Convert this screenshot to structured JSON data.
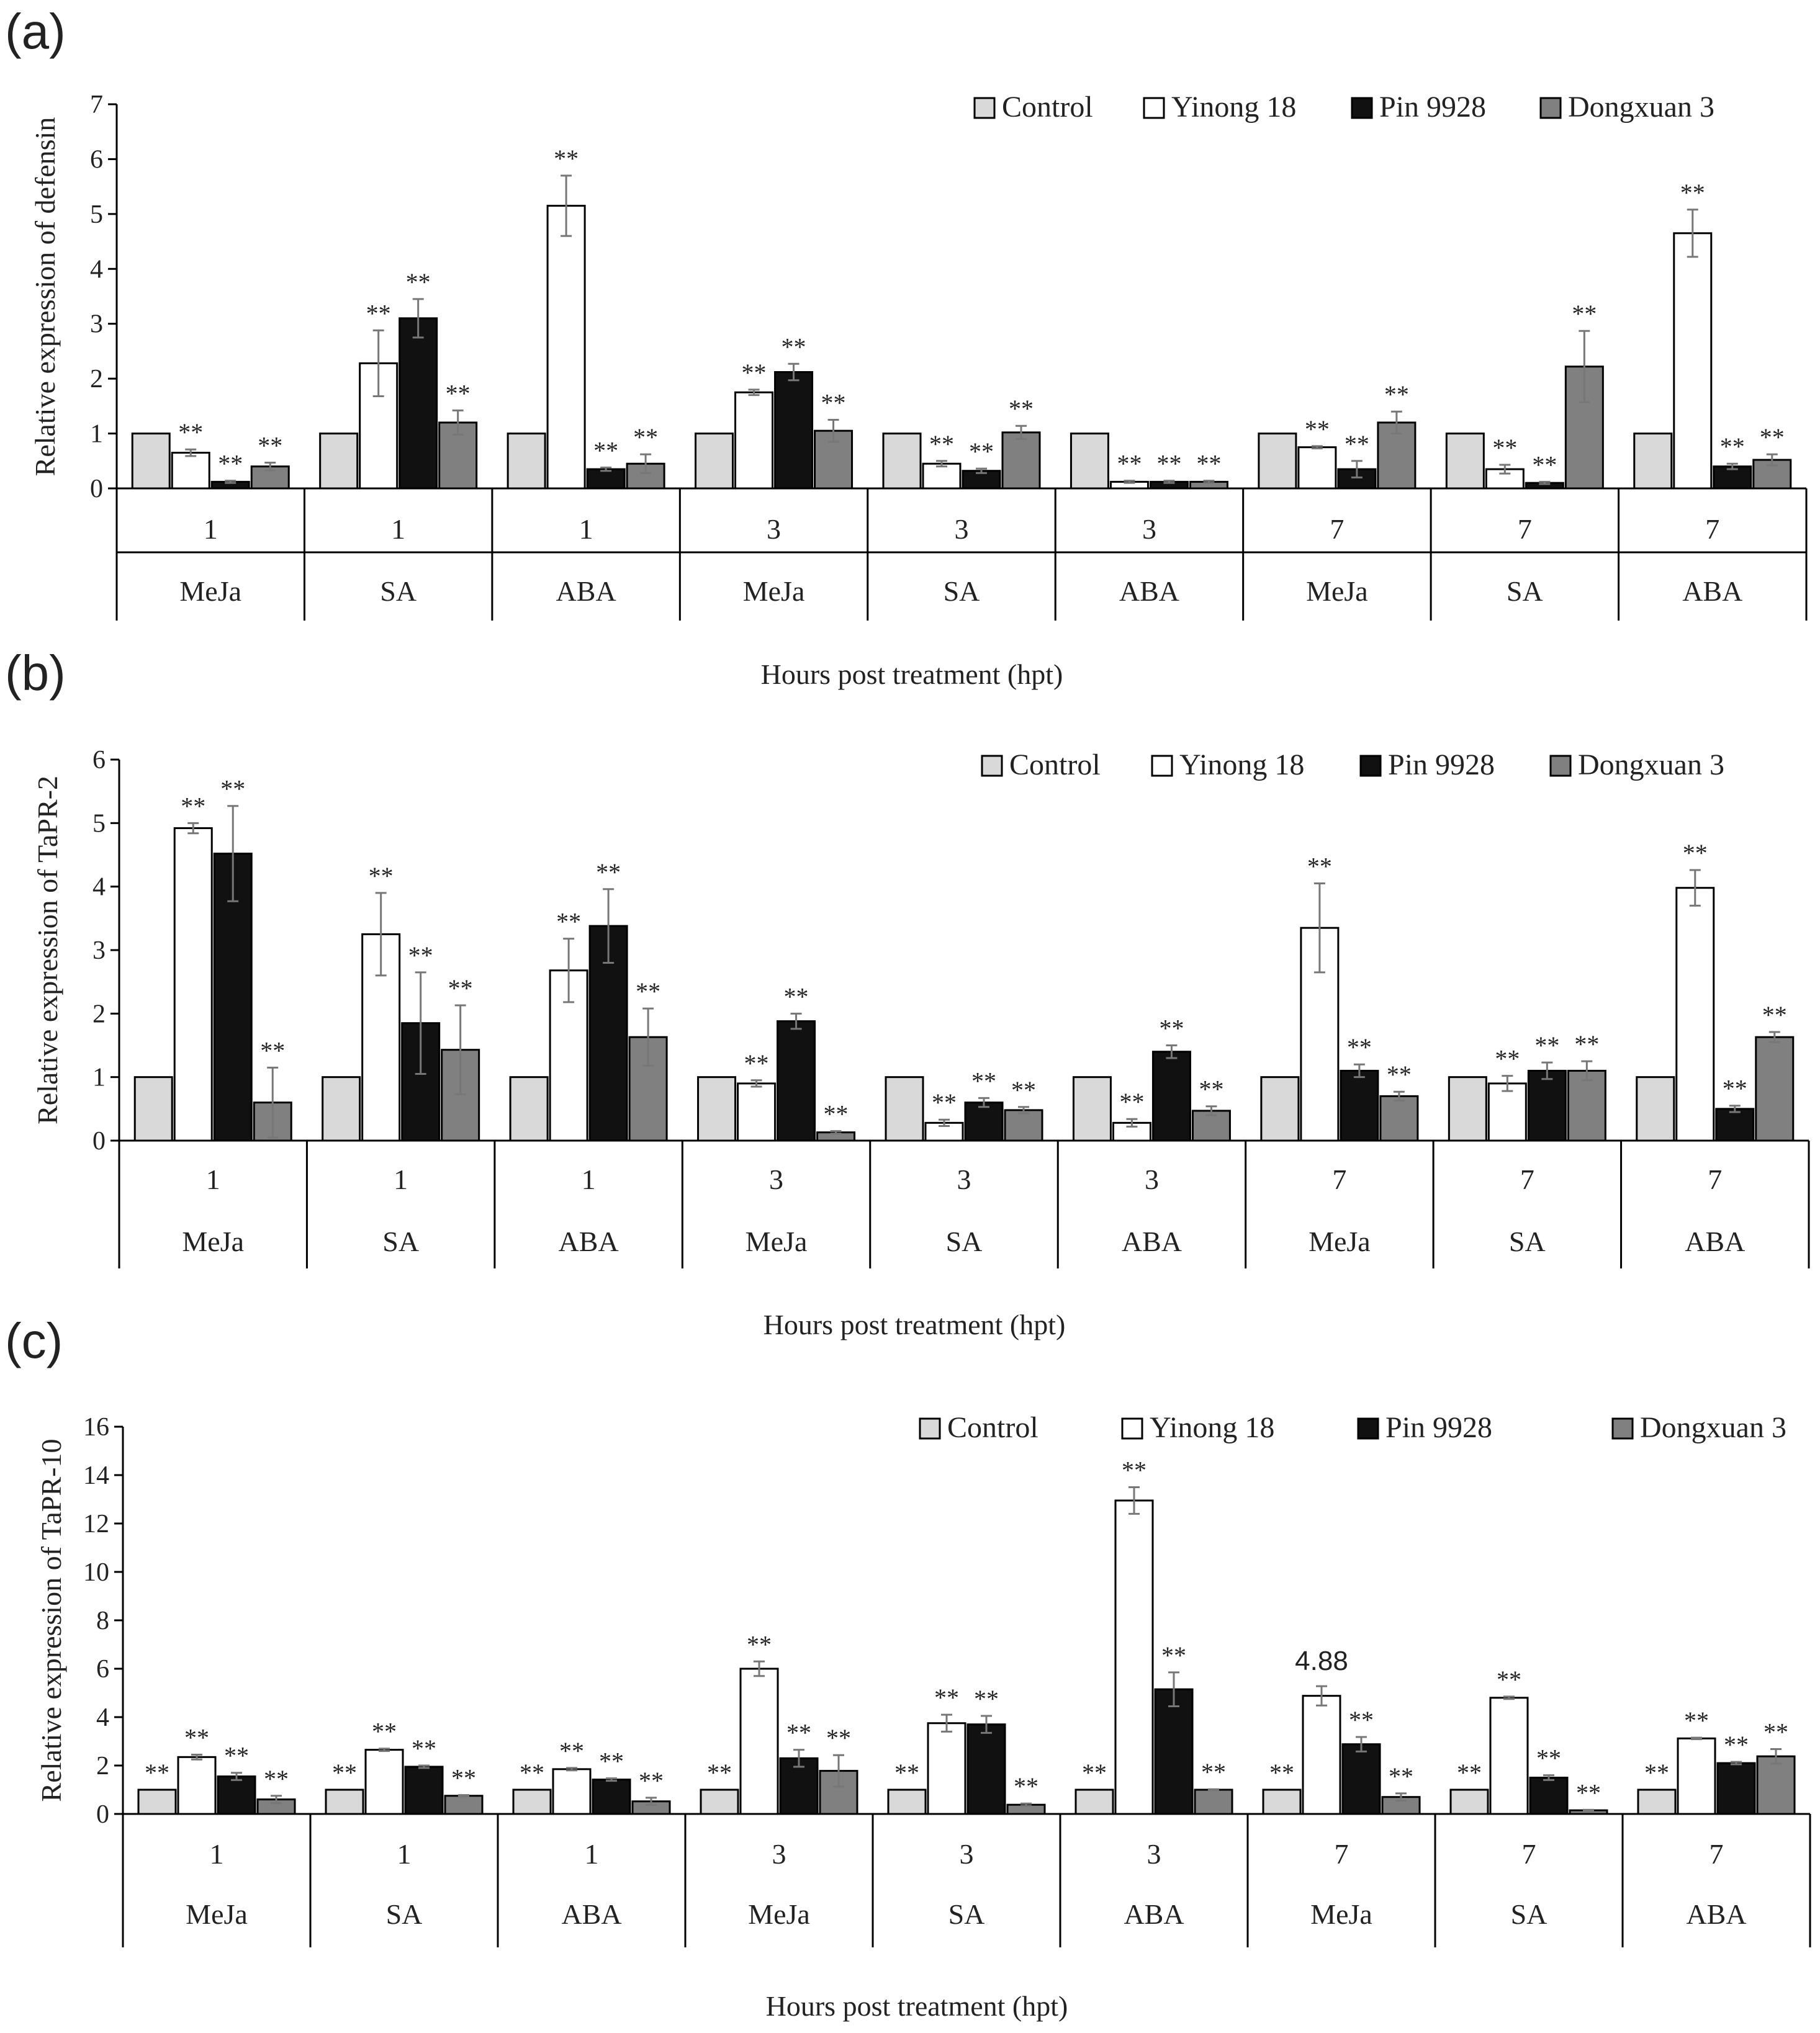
{
  "figure": {
    "colors": {
      "Control": "#d9d9d9",
      "Yinong 18": "#ffffff",
      "Pin 9928": "#111111",
      "Dongxuan 3": "#808080",
      "error_bar": "#777777",
      "axis": "#000000"
    }
  },
  "chart_data": [
    {
      "panel": "(a)",
      "type": "bar",
      "ylabel": "Relative expression of defensin",
      "xlabel": "Hours post treatment (hpt)",
      "ylim": [
        0,
        7
      ],
      "yticks": [
        0,
        1,
        2,
        3,
        4,
        5,
        6,
        7
      ],
      "legend": [
        "Control",
        "Yinong 18",
        "Pin 9928",
        "Dongxuan 3"
      ],
      "legend_position": "top-right",
      "groups": [
        {
          "hpt": "1",
          "treatment": "MeJa"
        },
        {
          "hpt": "1",
          "treatment": "SA"
        },
        {
          "hpt": "1",
          "treatment": "ABA"
        },
        {
          "hpt": "3",
          "treatment": "MeJa"
        },
        {
          "hpt": "3",
          "treatment": "SA"
        },
        {
          "hpt": "3",
          "treatment": "ABA"
        },
        {
          "hpt": "7",
          "treatment": "MeJa"
        },
        {
          "hpt": "7",
          "treatment": "SA"
        },
        {
          "hpt": "7",
          "treatment": "ABA"
        }
      ],
      "series": [
        {
          "name": "Control",
          "values": [
            1,
            1,
            1,
            1,
            1,
            1,
            1,
            1,
            1
          ],
          "errors": [
            0,
            0,
            0,
            0,
            0,
            0,
            0,
            0,
            0
          ],
          "sig": [
            "",
            "",
            "",
            "",
            "",
            "",
            "",
            "",
            ""
          ]
        },
        {
          "name": "Yinong 18",
          "values": [
            0.65,
            2.28,
            5.15,
            1.75,
            0.45,
            0.12,
            0.75,
            0.35,
            4.65
          ],
          "errors": [
            0.06,
            0.6,
            0.55,
            0.05,
            0.05,
            0.02,
            0.02,
            0.08,
            0.43
          ],
          "sig": [
            "**",
            "**",
            "**",
            "**",
            "**",
            "**",
            "**",
            "**",
            "**"
          ]
        },
        {
          "name": "Pin 9928",
          "values": [
            0.12,
            3.1,
            0.35,
            2.12,
            0.32,
            0.12,
            0.35,
            0.1,
            0.4
          ],
          "errors": [
            0.02,
            0.35,
            0.03,
            0.15,
            0.04,
            0.02,
            0.15,
            0.02,
            0.05
          ],
          "sig": [
            "**",
            "**",
            "**",
            "**",
            "**",
            "**",
            "**",
            "**",
            "**"
          ]
        },
        {
          "name": "Dongxuan 3",
          "values": [
            0.4,
            1.2,
            0.45,
            1.05,
            1.02,
            0.12,
            1.2,
            2.22,
            0.52
          ],
          "errors": [
            0.07,
            0.22,
            0.17,
            0.2,
            0.12,
            0.02,
            0.2,
            0.65,
            0.1
          ],
          "sig": [
            "**",
            "**",
            "**",
            "**",
            "**",
            "**",
            "**",
            "**",
            "**"
          ]
        }
      ]
    },
    {
      "panel": "(b)",
      "type": "bar",
      "ylabel": "Relative expression of TaPR-2",
      "xlabel": "Hours post treatment (hpt)",
      "ylim": [
        0,
        6
      ],
      "yticks": [
        0,
        1,
        2,
        3,
        4,
        5,
        6
      ],
      "legend": [
        "Control",
        "Yinong 18",
        "Pin 9928",
        "Dongxuan 3"
      ],
      "legend_position": "top-right",
      "groups": [
        {
          "hpt": "1",
          "treatment": "MeJa"
        },
        {
          "hpt": "1",
          "treatment": "SA"
        },
        {
          "hpt": "1",
          "treatment": "ABA"
        },
        {
          "hpt": "3",
          "treatment": "MeJa"
        },
        {
          "hpt": "3",
          "treatment": "SA"
        },
        {
          "hpt": "3",
          "treatment": "ABA"
        },
        {
          "hpt": "7",
          "treatment": "MeJa"
        },
        {
          "hpt": "7",
          "treatment": "SA"
        },
        {
          "hpt": "7",
          "treatment": "ABA"
        }
      ],
      "series": [
        {
          "name": "Control",
          "values": [
            1,
            1,
            1,
            1,
            1,
            1,
            1,
            1,
            1
          ],
          "errors": [
            0,
            0,
            0,
            0,
            0,
            0,
            0,
            0,
            0
          ],
          "sig": [
            "",
            "",
            "",
            "",
            "",
            "",
            "",
            "",
            ""
          ]
        },
        {
          "name": "Yinong 18",
          "values": [
            4.92,
            3.25,
            2.68,
            0.9,
            0.28,
            0.28,
            3.35,
            0.9,
            3.98
          ],
          "errors": [
            0.08,
            0.65,
            0.5,
            0.05,
            0.05,
            0.06,
            0.7,
            0.12,
            0.28
          ],
          "sig": [
            "**",
            "**",
            "**",
            "**",
            "**",
            "**",
            "**",
            "**",
            "**"
          ]
        },
        {
          "name": "Pin 9928",
          "values": [
            4.52,
            1.85,
            3.38,
            1.88,
            0.6,
            1.4,
            1.1,
            1.1,
            0.5
          ],
          "errors": [
            0.75,
            0.8,
            0.58,
            0.12,
            0.07,
            0.1,
            0.1,
            0.13,
            0.05
          ],
          "sig": [
            "**",
            "**",
            "**",
            "**",
            "**",
            "**",
            "**",
            "**",
            "**"
          ]
        },
        {
          "name": "Dongxuan 3",
          "values": [
            0.6,
            1.43,
            1.63,
            0.13,
            0.48,
            0.47,
            0.7,
            1.1,
            1.63
          ],
          "errors": [
            0.55,
            0.7,
            0.45,
            0.02,
            0.05,
            0.07,
            0.07,
            0.15,
            0.08
          ],
          "sig": [
            "**",
            "**",
            "**",
            "**",
            "**",
            "**",
            "**",
            "**",
            "**"
          ]
        }
      ]
    },
    {
      "panel": "(c)",
      "type": "bar",
      "ylabel": "Relative expression of TaPR-10",
      "xlabel": "Hours post treatment (hpt)",
      "ylim": [
        0,
        16
      ],
      "yticks": [
        0,
        2,
        4,
        6,
        8,
        10,
        12,
        14,
        16
      ],
      "legend": [
        "Control",
        "Yinong 18",
        "Pin 9928",
        "Dongxuan 3"
      ],
      "legend_position": "top-right",
      "annotation": {
        "text": "4.88",
        "group": 6,
        "series": "Yinong 18"
      },
      "groups": [
        {
          "hpt": "1",
          "treatment": "MeJa"
        },
        {
          "hpt": "1",
          "treatment": "SA"
        },
        {
          "hpt": "1",
          "treatment": "ABA"
        },
        {
          "hpt": "3",
          "treatment": "MeJa"
        },
        {
          "hpt": "3",
          "treatment": "SA"
        },
        {
          "hpt": "3",
          "treatment": "ABA"
        },
        {
          "hpt": "7",
          "treatment": "MeJa"
        },
        {
          "hpt": "7",
          "treatment": "SA"
        },
        {
          "hpt": "7",
          "treatment": "ABA"
        }
      ],
      "series": [
        {
          "name": "Control",
          "values": [
            1,
            1,
            1,
            1,
            1,
            1,
            1,
            1,
            1
          ],
          "errors": [
            0,
            0,
            0,
            0,
            0,
            0,
            0,
            0,
            0
          ],
          "sig": [
            "**",
            "**",
            "**",
            "**",
            "**",
            "**",
            "**",
            "**",
            "**"
          ]
        },
        {
          "name": "Yinong 18",
          "values": [
            2.35,
            2.65,
            1.85,
            6.0,
            3.75,
            12.95,
            4.88,
            4.8,
            3.12
          ],
          "errors": [
            0.1,
            0.05,
            0.05,
            0.3,
            0.35,
            0.55,
            0.4,
            0.05,
            0.03
          ],
          "sig": [
            "**",
            "**",
            "**",
            "**",
            "**",
            "**",
            "",
            "**",
            "**"
          ]
        },
        {
          "name": "Pin 9928",
          "values": [
            1.55,
            1.95,
            1.42,
            2.3,
            3.7,
            5.15,
            2.88,
            1.5,
            2.1
          ],
          "errors": [
            0.15,
            0.05,
            0.05,
            0.35,
            0.35,
            0.7,
            0.3,
            0.1,
            0.05
          ],
          "sig": [
            "**",
            "**",
            "**",
            "**",
            "**",
            "**",
            "**",
            "**",
            "**"
          ]
        },
        {
          "name": "Dongxuan 3",
          "values": [
            0.6,
            0.75,
            0.52,
            1.78,
            0.38,
            1.0,
            0.7,
            0.15,
            2.38
          ],
          "errors": [
            0.15,
            0.03,
            0.15,
            0.65,
            0.05,
            0.02,
            0.15,
            0.02,
            0.3
          ],
          "sig": [
            "**",
            "**",
            "**",
            "**",
            "**",
            "**",
            "**",
            "**",
            "**"
          ]
        }
      ]
    }
  ]
}
